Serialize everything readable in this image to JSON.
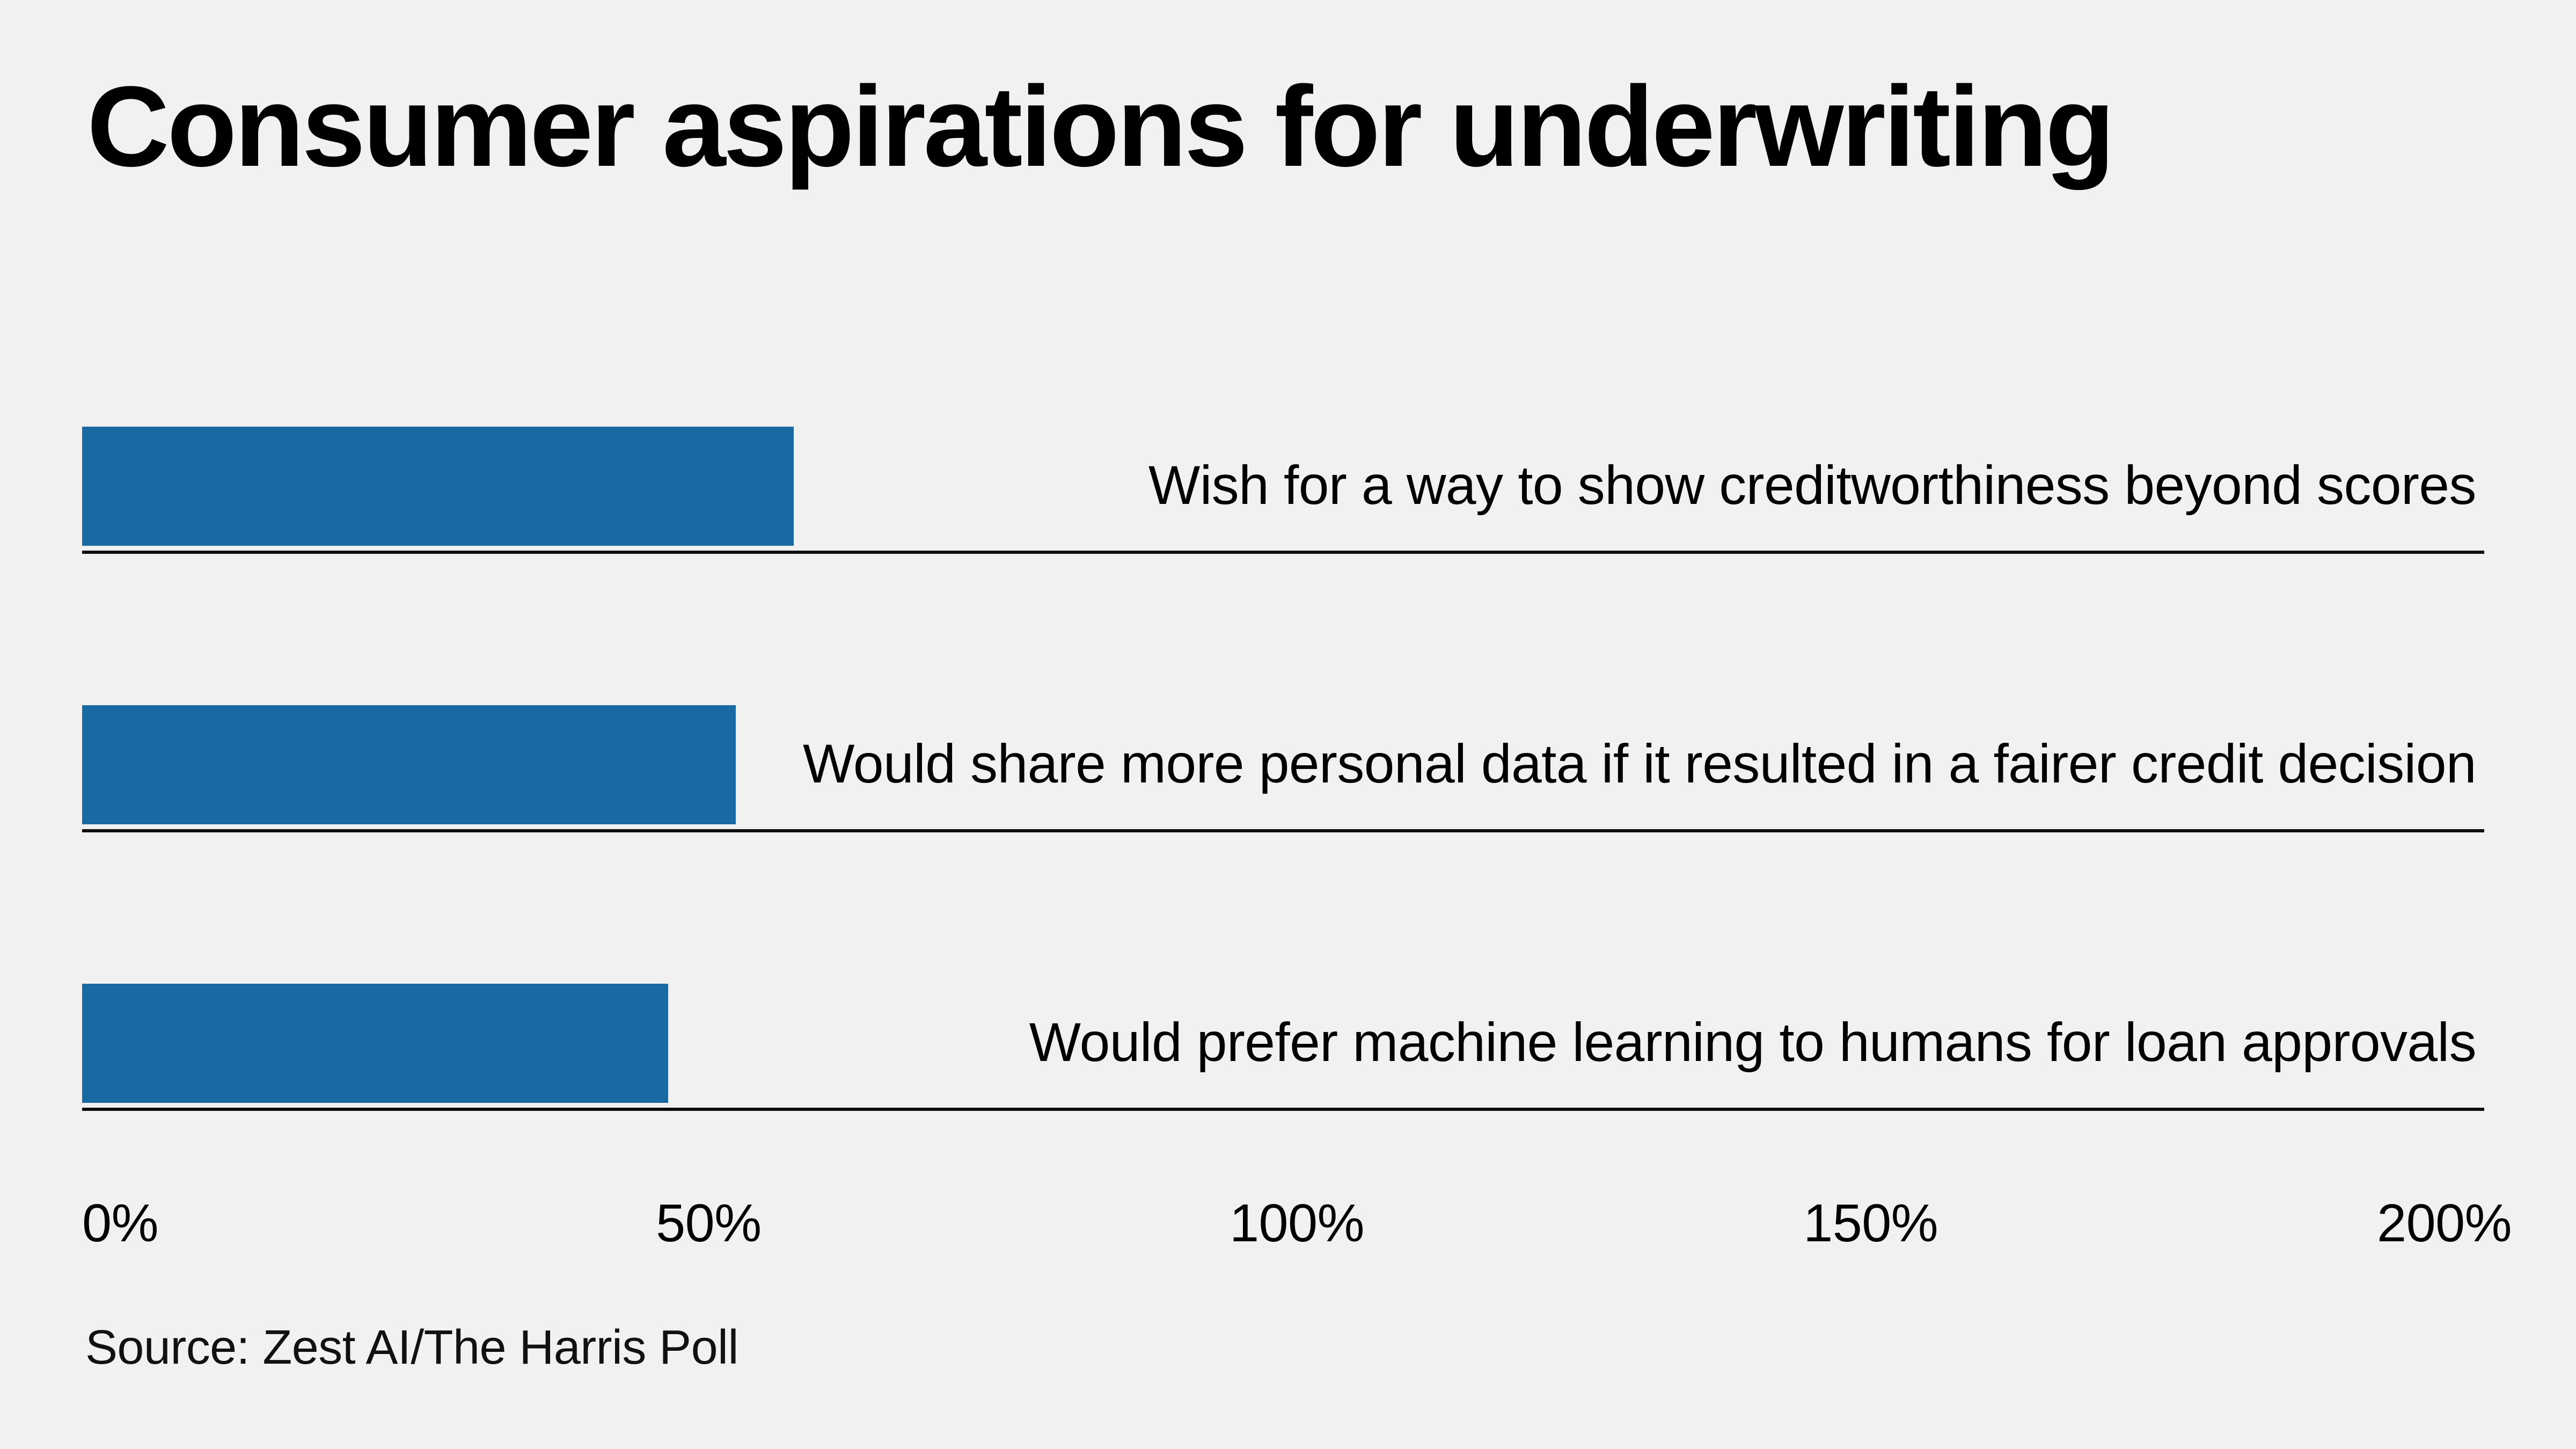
{
  "page": {
    "background_color": "#f0f1f0",
    "text_color": "#000000"
  },
  "header": {
    "title": "Consumer aspirations for underwriting"
  },
  "chart_data": {
    "type": "bar",
    "orientation": "horizontal",
    "title": "Consumer aspirations for underwriting",
    "categories": [
      "Wish for a way to show creditworthiness beyond scores",
      "Would share more personal data if it resulted in a fairer credit decision",
      "Would prefer machine learning to humans for loan approvals"
    ],
    "values": [
      62,
      57,
      51
    ],
    "unit": "%",
    "xlabel": "",
    "ylabel": "",
    "xlim": [
      0,
      200
    ],
    "x_ticks": [
      {
        "label": "0%",
        "value": 0
      },
      {
        "label": "50%",
        "value": 50
      },
      {
        "label": "100%",
        "value": 100
      },
      {
        "label": "150%",
        "value": 150
      },
      {
        "label": "200%",
        "value": 200
      }
    ],
    "grid": false,
    "legend_position": "none",
    "data_labels": false,
    "bar_color": "#1b69a3",
    "row_rule_color": "#0d0d0d"
  },
  "footer": {
    "source": "Source: Zest AI/The Harris Poll"
  }
}
